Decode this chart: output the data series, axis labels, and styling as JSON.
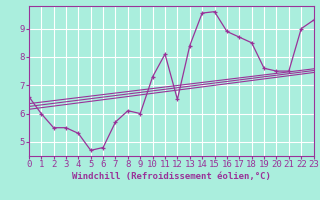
{
  "background_color": "#aaeedd",
  "grid_color": "#ffffff",
  "line_color": "#993399",
  "xlabel": "Windchill (Refroidissement éolien,°C)",
  "xlim": [
    0,
    23
  ],
  "ylim": [
    4.5,
    9.8
  ],
  "yticks": [
    5,
    6,
    7,
    8,
    9
  ],
  "xticks": [
    0,
    1,
    2,
    3,
    4,
    5,
    6,
    7,
    8,
    9,
    10,
    11,
    12,
    13,
    14,
    15,
    16,
    17,
    18,
    19,
    20,
    21,
    22,
    23
  ],
  "series1_x": [
    0,
    1,
    2,
    3,
    4,
    5,
    6,
    7,
    8,
    9,
    10,
    11,
    12,
    13,
    14,
    15,
    16,
    17,
    18,
    19,
    20,
    21,
    22,
    23
  ],
  "series1_y": [
    6.6,
    6.0,
    5.5,
    5.5,
    5.3,
    4.7,
    4.8,
    5.7,
    6.1,
    6.0,
    7.3,
    8.1,
    6.5,
    8.4,
    9.55,
    9.6,
    8.9,
    8.7,
    8.5,
    7.6,
    7.5,
    7.5,
    9.0,
    9.3
  ],
  "series2_x": [
    0,
    23
  ],
  "series2_y": [
    6.15,
    7.45
  ],
  "series3_x": [
    0,
    23
  ],
  "series3_y": [
    6.25,
    7.52
  ],
  "series4_x": [
    0,
    23
  ],
  "series4_y": [
    6.35,
    7.58
  ],
  "font_family": "monospace",
  "xlabel_fontsize": 6.5,
  "tick_fontsize": 6.5,
  "marker": "+"
}
